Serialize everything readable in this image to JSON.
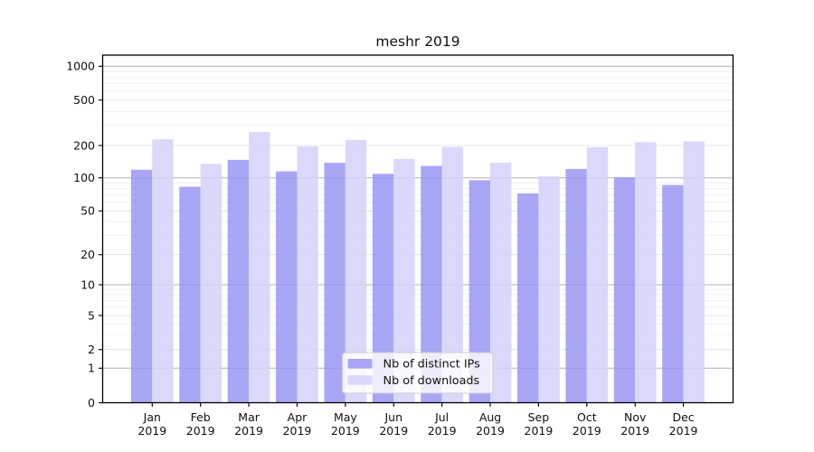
{
  "figure": {
    "title": "meshr 2019"
  },
  "chart_data": {
    "type": "bar",
    "title": "meshr 2019",
    "categories": [
      "Jan",
      "Feb",
      "Mar",
      "Apr",
      "May",
      "Jun",
      "Jul",
      "Aug",
      "Sep",
      "Oct",
      "Nov",
      "Dec"
    ],
    "category_year": "2019",
    "x_tick_labels": [
      "Jan 2019",
      "Feb 2019",
      "Mar 2019",
      "Apr 2019",
      "May 2019",
      "Jun 2019",
      "Jul 2019",
      "Aug 2019",
      "Sep 2019",
      "Oct 2019",
      "Nov 2019",
      "Dec 2019"
    ],
    "series": [
      {
        "name": "Nb of distinct IPs",
        "color": "#9490f4",
        "fill_opacity": 0.8,
        "values": [
          119,
          83,
          147,
          115,
          138,
          109,
          129,
          95,
          72,
          121,
          101,
          86
        ]
      },
      {
        "name": "Nb of downloads",
        "color": "#d4d2fa",
        "fill_opacity": 0.85,
        "values": [
          227,
          135,
          263,
          196,
          224,
          150,
          194,
          138,
          103,
          193,
          214,
          218
        ]
      }
    ],
    "xlabel": "",
    "ylabel": "",
    "yscale": "symlog",
    "yticks": [
      0,
      1,
      2,
      5,
      10,
      20,
      50,
      100,
      200,
      500,
      1000
    ],
    "ylim": [
      0,
      1500
    ],
    "grid": true,
    "grid_major_color": "#b3b3b3",
    "grid_minor_color": "#e0e0e0",
    "grid_subminor_color": "#ededed",
    "legend": {
      "position": "lower center",
      "items": [
        "Nb of distinct IPs",
        "Nb of downloads"
      ]
    }
  }
}
